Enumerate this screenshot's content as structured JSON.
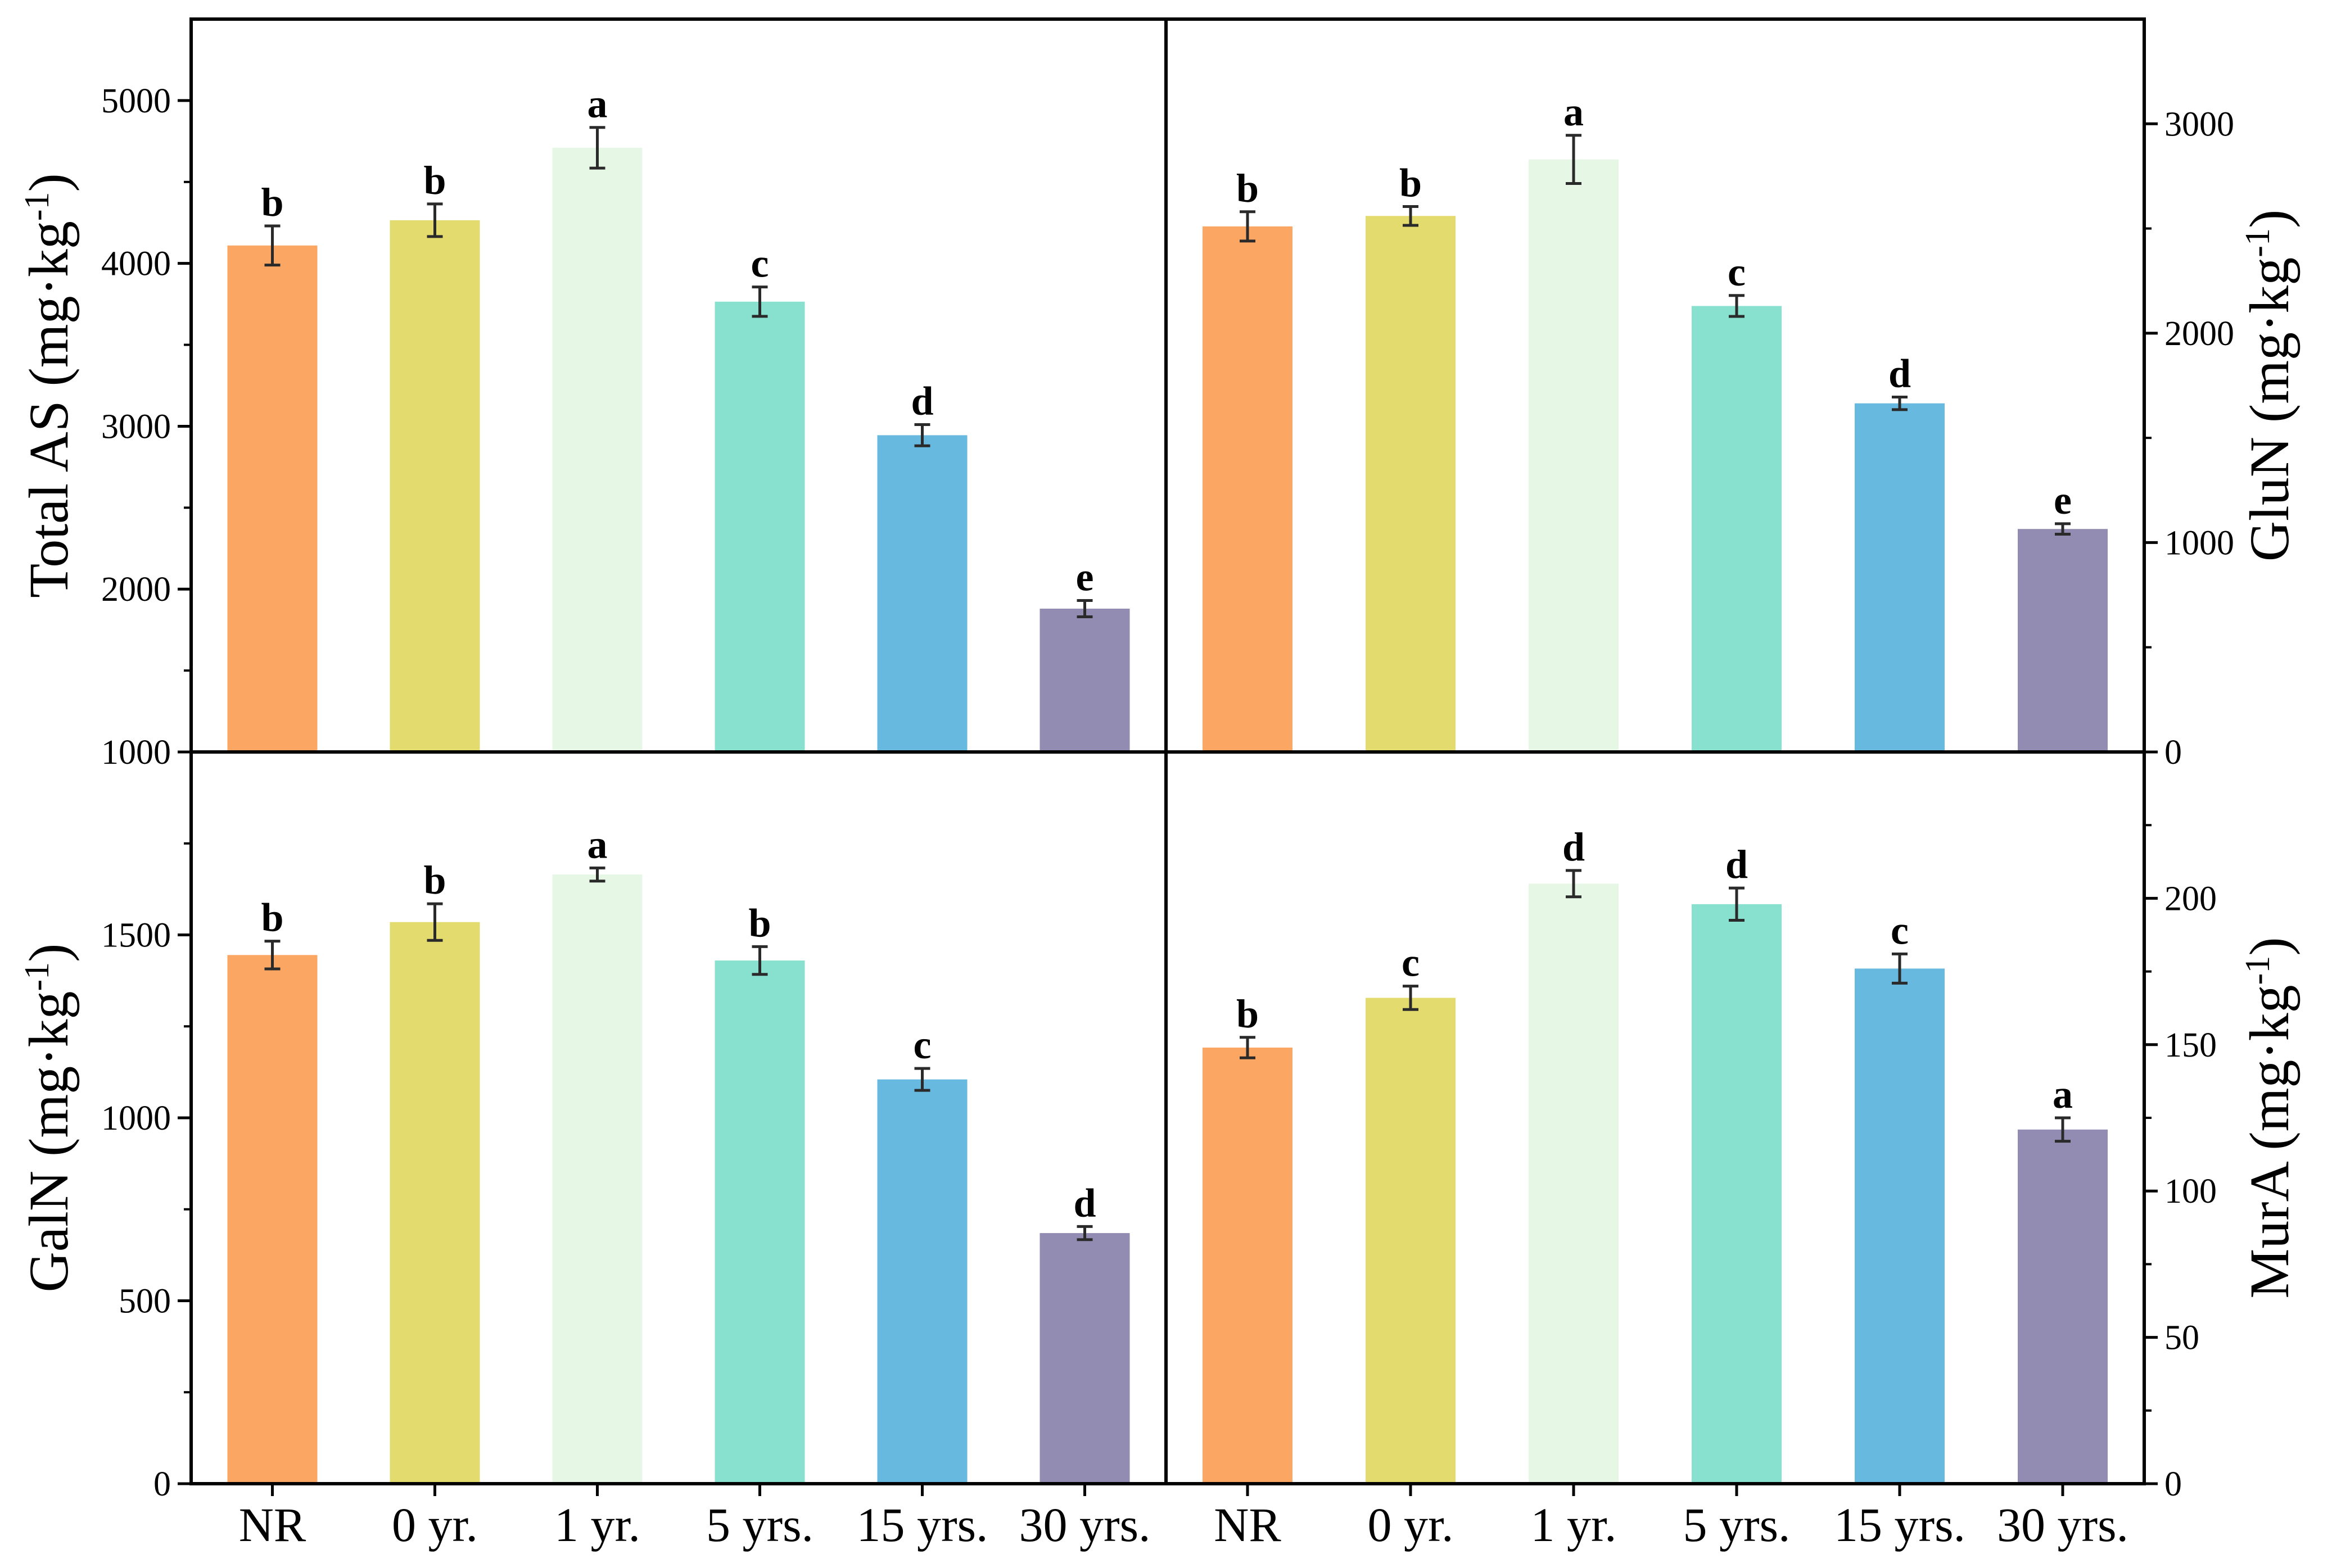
{
  "chart_data": [
    {
      "type": "bar",
      "panel": "top-left",
      "categories": [
        "NR",
        "0 yr.",
        "1 yr.",
        "5 yrs.",
        "15 yrs.",
        "30 yrs."
      ],
      "values": [
        4110,
        4265,
        4710,
        3765,
        2945,
        1880
      ],
      "errors": [
        120,
        100,
        125,
        90,
        65,
        50
      ],
      "letters": [
        "b",
        "b",
        "a",
        "c",
        "d",
        "e"
      ],
      "ylabel": "Total AS (mg·kg-1)",
      "ylabel_main": "Total AS (mg·kg",
      "ylabel_sup": "-1",
      "ylabel_close": ")",
      "ylim": [
        1000,
        5500
      ],
      "yticks": [
        "1000",
        "2000",
        "3000",
        "4000",
        "5000"
      ],
      "ytick_values": [
        1000,
        2000,
        3000,
        4000,
        5000
      ],
      "axis_side": "left"
    },
    {
      "type": "bar",
      "panel": "top-right",
      "categories": [
        "NR",
        "0 yr.",
        "1 yr.",
        "5 yrs.",
        "15 yrs.",
        "30 yrs."
      ],
      "values": [
        2510,
        2560,
        2830,
        2130,
        1665,
        1065
      ],
      "errors": [
        70,
        45,
        115,
        50,
        30,
        25
      ],
      "letters": [
        "b",
        "b",
        "a",
        "c",
        "d",
        "e"
      ],
      "ylabel": "GluN (mg·kg-1)",
      "ylabel_main": "GluN (mg·kg",
      "ylabel_sup": "-1",
      "ylabel_close": ")",
      "ylim": [
        0,
        3500
      ],
      "yticks": [
        "0",
        "1000",
        "2000",
        "3000"
      ],
      "ytick_values": [
        0,
        1000,
        2000,
        3000
      ],
      "axis_side": "right"
    },
    {
      "type": "bar",
      "panel": "bottom-left",
      "categories": [
        "NR",
        "0 yr.",
        "1 yr.",
        "5 yrs.",
        "15 yrs.",
        "30 yrs."
      ],
      "values": [
        1445,
        1535,
        1665,
        1430,
        1105,
        685
      ],
      "errors": [
        38,
        50,
        18,
        38,
        30,
        18
      ],
      "letters": [
        "b",
        "b",
        "a",
        "b",
        "c",
        "d"
      ],
      "ylabel": "GalN (mg·kg-1)",
      "ylabel_main": "GalN (mg·kg",
      "ylabel_sup": "-1",
      "ylabel_close": ")",
      "ylim": [
        0,
        2000
      ],
      "yticks": [
        "0",
        "500",
        "1000",
        "1500"
      ],
      "ytick_values": [
        0,
        500,
        1000,
        1500
      ],
      "axis_side": "left"
    },
    {
      "type": "bar",
      "panel": "bottom-right",
      "categories": [
        "NR",
        "0 yr.",
        "1 yr.",
        "5 yrs.",
        "15 yrs.",
        "30 yrs."
      ],
      "values": [
        149,
        166,
        205,
        198,
        176,
        121
      ],
      "errors": [
        3.5,
        4,
        4.5,
        5.5,
        5,
        4
      ],
      "letters": [
        "b",
        "c",
        "d",
        "d",
        "c",
        "a"
      ],
      "ylabel": "MurA (mg·kg-1)",
      "ylabel_main": "MurA (mg·kg",
      "ylabel_sup": "-1",
      "ylabel_close": ")",
      "ylim": [
        0,
        250
      ],
      "yticks": [
        "0",
        "50",
        "100",
        "150",
        "200"
      ],
      "ytick_values": [
        0,
        50,
        100,
        150,
        200
      ],
      "axis_side": "right"
    }
  ],
  "colors": {
    "bars": [
      "#FCA664",
      "#E4DB6E",
      "#E6F8E5",
      "#88E0CF",
      "#68B9E0",
      "#938CB2"
    ],
    "frame": "#000000",
    "error_bar": "#2a2a2a"
  }
}
